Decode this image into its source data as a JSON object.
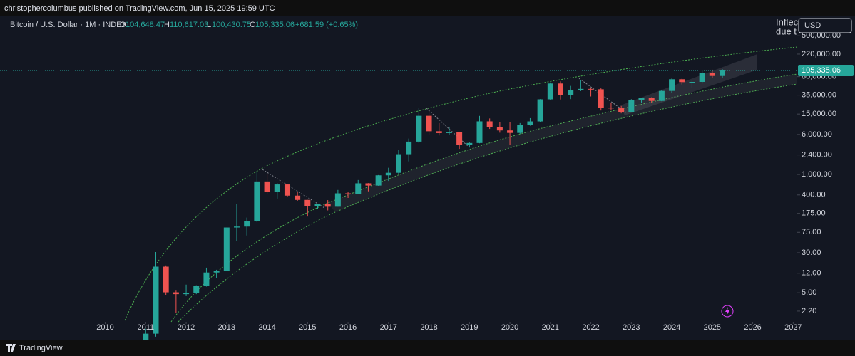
{
  "header": {
    "publisher": "christophercolumbus published on TradingView.com, Jun 15, 2025 19:59 UTC"
  },
  "symbol": {
    "name": "Bitcoin / U.S. Dollar · 1M · INDEX",
    "o_label": "O",
    "o": "104,648.47",
    "h_label": "H",
    "h": "110,617.03",
    "l_label": "L",
    "l": "100,430.75",
    "c_label": "C",
    "c": "105,335.06",
    "change": "+681.59 (+0.65%)"
  },
  "annotation": {
    "line1": "Inflec",
    "line2": "due t"
  },
  "currency": "USD",
  "footer": {
    "brand": "TradingView"
  },
  "chart_data": {
    "type": "candlestick",
    "log_y": true,
    "up_color": "#26a69a",
    "down_color": "#ef5350",
    "x": [
      2011.0,
      2011.25,
      2011.5,
      2011.75,
      2012.0,
      2012.25,
      2012.5,
      2012.75,
      2013.0,
      2013.25,
      2013.5,
      2013.75,
      2014.0,
      2014.25,
      2014.5,
      2014.75,
      2015.0,
      2015.25,
      2015.5,
      2015.75,
      2016.0,
      2016.25,
      2016.5,
      2016.75,
      2017.0,
      2017.25,
      2017.5,
      2017.75,
      2018.0,
      2018.25,
      2018.5,
      2018.75,
      2019.0,
      2019.25,
      2019.5,
      2019.75,
      2020.0,
      2020.25,
      2020.5,
      2020.75,
      2021.0,
      2021.25,
      2021.5,
      2021.75,
      2022.0,
      2022.25,
      2022.5,
      2022.75,
      2023.0,
      2023.25,
      2023.5,
      2023.75,
      2024.0,
      2024.25,
      2024.5,
      2024.75,
      2025.0,
      2025.25
    ],
    "open": [
      0.3,
      0.8,
      16.1,
      5.1,
      4.7,
      4.9,
      6.7,
      12.4,
      13.5,
      93,
      97,
      125,
      732,
      457,
      640,
      388,
      320,
      244,
      263,
      236,
      430,
      416,
      673,
      609,
      963,
      1079,
      2480,
      4360,
      13860,
      6930,
      6390,
      6630,
      3740,
      4100,
      10800,
      8290,
      7190,
      6440,
      9140,
      10780,
      28990,
      58900,
      35040,
      43790,
      46300,
      45500,
      19920,
      19420,
      16540,
      28450,
      30470,
      26970,
      42280,
      71300,
      62680,
      63330,
      93430,
      82550
    ],
    "high": [
      1.0,
      31,
      17,
      5.5,
      7.2,
      7.0,
      15.4,
      14,
      93,
      266,
      145,
      1150,
      1000,
      680,
      660,
      455,
      320,
      265,
      317,
      500,
      465,
      780,
      680,
      975,
      1350,
      3000,
      5000,
      19700,
      17200,
      9990,
      8500,
      6800,
      4200,
      13800,
      12300,
      10500,
      10500,
      10000,
      12480,
      29300,
      61800,
      64800,
      52900,
      69000,
      48200,
      47400,
      25200,
      21500,
      29200,
      31400,
      31800,
      44700,
      73800,
      72800,
      70000,
      108300,
      109350,
      111970
    ],
    "low": [
      0.3,
      0.7,
      4.5,
      2.0,
      4.3,
      4.7,
      6.6,
      9.6,
      13.3,
      50,
      65,
      118,
      420,
      340,
      370,
      300,
      152,
      215,
      200,
      236,
      350,
      415,
      470,
      603,
      750,
      1000,
      1800,
      4100,
      5900,
      5750,
      5800,
      3150,
      3350,
      4050,
      7700,
      6500,
      3800,
      6150,
      8900,
      10400,
      28100,
      28800,
      29300,
      41900,
      32950,
      17600,
      17600,
      15500,
      16500,
      24800,
      24900,
      26600,
      38500,
      56500,
      49000,
      58900,
      76600,
      74400
    ],
    "close": [
      0.8,
      16.1,
      5.1,
      4.7,
      4.9,
      6.7,
      12.4,
      13.5,
      93,
      97,
      125,
      732,
      457,
      640,
      388,
      320,
      244,
      263,
      236,
      430,
      416,
      673,
      609,
      963,
      1079,
      2480,
      4360,
      13860,
      6930,
      6390,
      6630,
      3740,
      4100,
      10800,
      8290,
      7190,
      6440,
      9140,
      10780,
      28990,
      58900,
      35040,
      43790,
      46300,
      45500,
      19920,
      19420,
      16540,
      28450,
      30470,
      26970,
      42280,
      71300,
      62680,
      63330,
      93430,
      82550,
      105335
    ],
    "xlim": [
      2007.4,
      2027.1
    ],
    "xticks": [
      2010,
      2011,
      2012,
      2013,
      2014,
      2015,
      2016,
      2017,
      2018,
      2019,
      2020,
      2021,
      2022,
      2023,
      2024,
      2025,
      2026,
      2027
    ],
    "ylim": [
      1.36,
      1230000
    ],
    "yticks": [
      {
        "value": 2.2,
        "label": "2.20"
      },
      {
        "value": 5,
        "label": "5.00"
      },
      {
        "value": 12,
        "label": "12.00"
      },
      {
        "value": 30,
        "label": "30.00"
      },
      {
        "value": 75,
        "label": "75.00"
      },
      {
        "value": 175,
        "label": "175.00"
      },
      {
        "value": 400,
        "label": "400.00"
      },
      {
        "value": 1000,
        "label": "1,000.00"
      },
      {
        "value": 2400,
        "label": "2,400.00"
      },
      {
        "value": 6000,
        "label": "6,000.00"
      },
      {
        "value": 15000,
        "label": "15,000.00"
      },
      {
        "value": 35000,
        "label": "35,000.00"
      },
      {
        "value": 80000,
        "label": "80,000.00"
      },
      {
        "value": 220000,
        "label": "220,000.00"
      },
      {
        "value": 500000,
        "label": "500,000.00"
      }
    ],
    "last_price": {
      "value": 105335.06,
      "label": "105,335.06"
    }
  }
}
